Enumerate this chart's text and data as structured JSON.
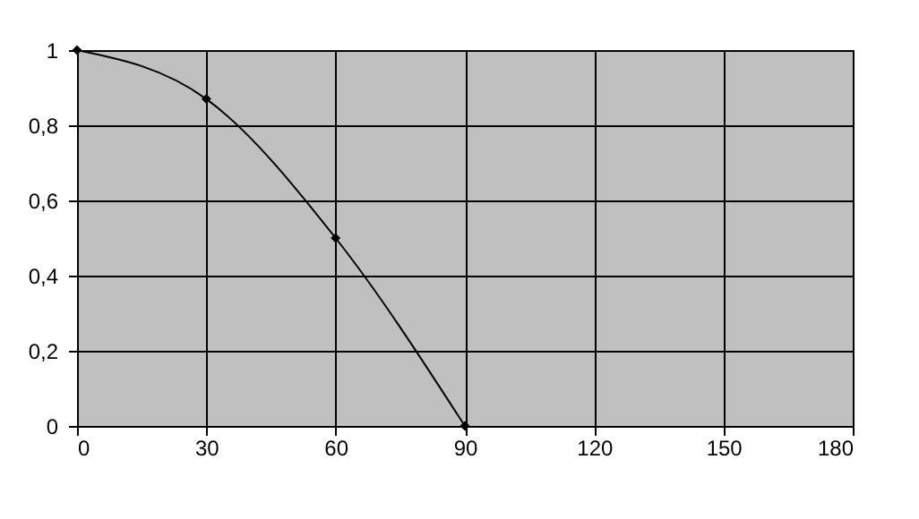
{
  "chart_data": {
    "type": "line",
    "x": [
      0,
      30,
      60,
      90
    ],
    "series": [
      {
        "color": "#000000",
        "values": [
          1,
          0.87,
          0.5,
          0
        ]
      }
    ],
    "xlim": [
      0,
      180
    ],
    "xticks": [
      0,
      30,
      60,
      90,
      120,
      150,
      180
    ],
    "ylim": [
      0,
      1
    ],
    "yticks": [
      0,
      {
        "value": 0.2,
        "label": "0,2"
      },
      {
        "value": 0.4,
        "label": "0,4"
      },
      {
        "value": 0.6,
        "label": "0,6"
      },
      {
        "value": 0.8,
        "label": "0,8"
      },
      1
    ],
    "grid": true,
    "marker": "diamond",
    "line_style": "solid"
  }
}
